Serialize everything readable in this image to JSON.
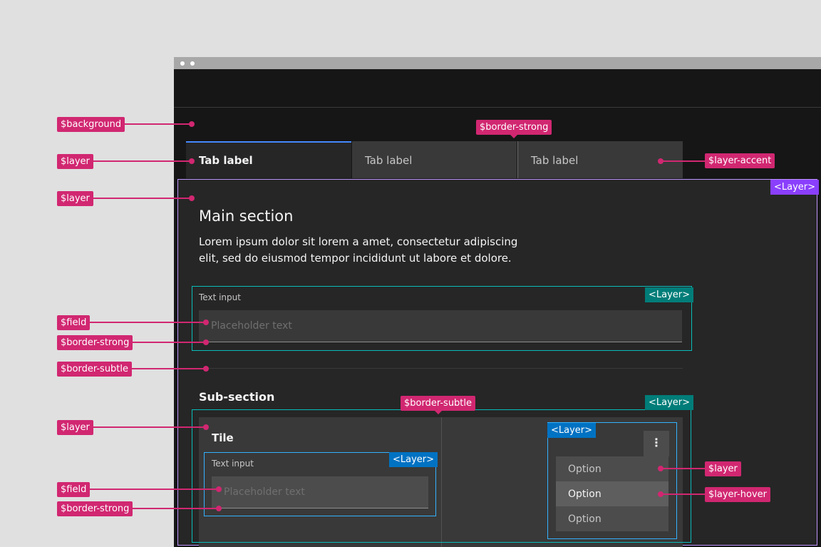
{
  "tabs": [
    {
      "label": "Tab label",
      "selected": true
    },
    {
      "label": "Tab label"
    },
    {
      "label": "Tab label"
    }
  ],
  "layer_tag": "<Layer>",
  "main": {
    "title": "Main section",
    "para1": "Lorem ipsum dolor sit lorem a amet, consectetur adipiscing",
    "para2": "elit, sed do eiusmod tempor incididunt ut labore et dolore.",
    "input_label": "Text input",
    "placeholder": "Placeholder text"
  },
  "sub": {
    "title": "Sub-section",
    "tile_title": "Tile",
    "input_label": "Text input",
    "placeholder": "Placeholder text",
    "menu_icon": "overflow-menu-vertical-icon",
    "options": [
      "Option",
      "Option",
      "Option"
    ],
    "hovered_option": 1
  },
  "annotations": {
    "background": "$background",
    "layer": "$layer",
    "field": "$field",
    "border_strong": "$border-strong",
    "border_subtle": "$border-subtle",
    "layer_accent": "$layer-accent",
    "layer_hover": "$layer-hover"
  },
  "colors": {
    "annotation": "#d12771",
    "layer_purple": "#8a3ffc",
    "layer_teal": "#007d79",
    "layer_blue": "#0072c3",
    "tab_accent": "#4589ff"
  }
}
